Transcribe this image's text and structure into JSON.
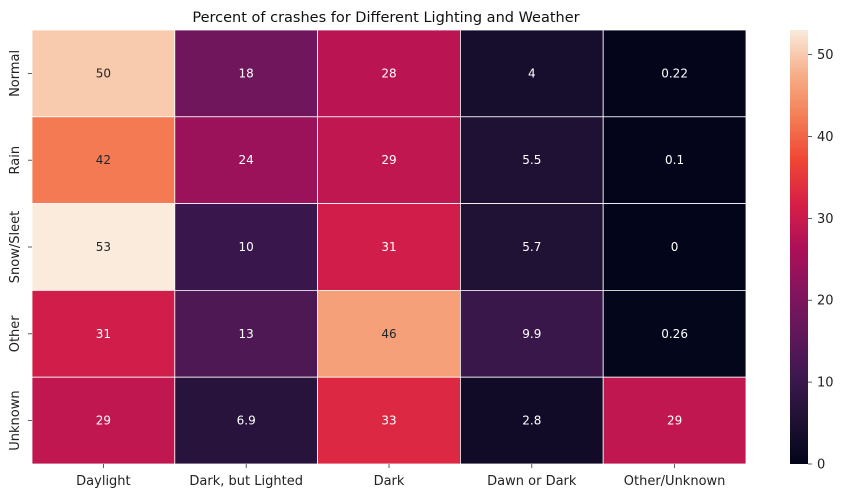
{
  "chart_data": {
    "type": "heatmap",
    "title": "Percent of crashes for Different Lighting and Weather",
    "xlabel": "",
    "ylabel": "",
    "columns": [
      "Daylight",
      "Dark, but Lighted",
      "Dark",
      "Dawn or Dark",
      "Other/Unknown"
    ],
    "rows": [
      "Normal",
      "Rain",
      "Snow/Sleet",
      "Other",
      "Unknown"
    ],
    "values": [
      [
        50,
        18,
        28,
        4,
        0.22
      ],
      [
        42,
        24,
        29,
        5.5,
        0.1
      ],
      [
        53,
        10,
        31,
        5.7,
        0
      ],
      [
        31,
        13,
        46,
        9.9,
        0.26
      ],
      [
        29,
        6.9,
        33,
        2.8,
        29
      ]
    ],
    "labels": [
      [
        "50",
        "18",
        "28",
        "4",
        "0.22"
      ],
      [
        "42",
        "24",
        "29",
        "5.5",
        "0.1"
      ],
      [
        "53",
        "10",
        "31",
        "5.7",
        "0"
      ],
      [
        "31",
        "13",
        "46",
        "9.9",
        "0.26"
      ],
      [
        "29",
        "6.9",
        "33",
        "2.8",
        "29"
      ]
    ],
    "colorbar": {
      "range": [
        0,
        53
      ],
      "ticks": [
        0,
        10,
        20,
        30,
        40,
        50
      ],
      "colormap": "rocket"
    }
  }
}
